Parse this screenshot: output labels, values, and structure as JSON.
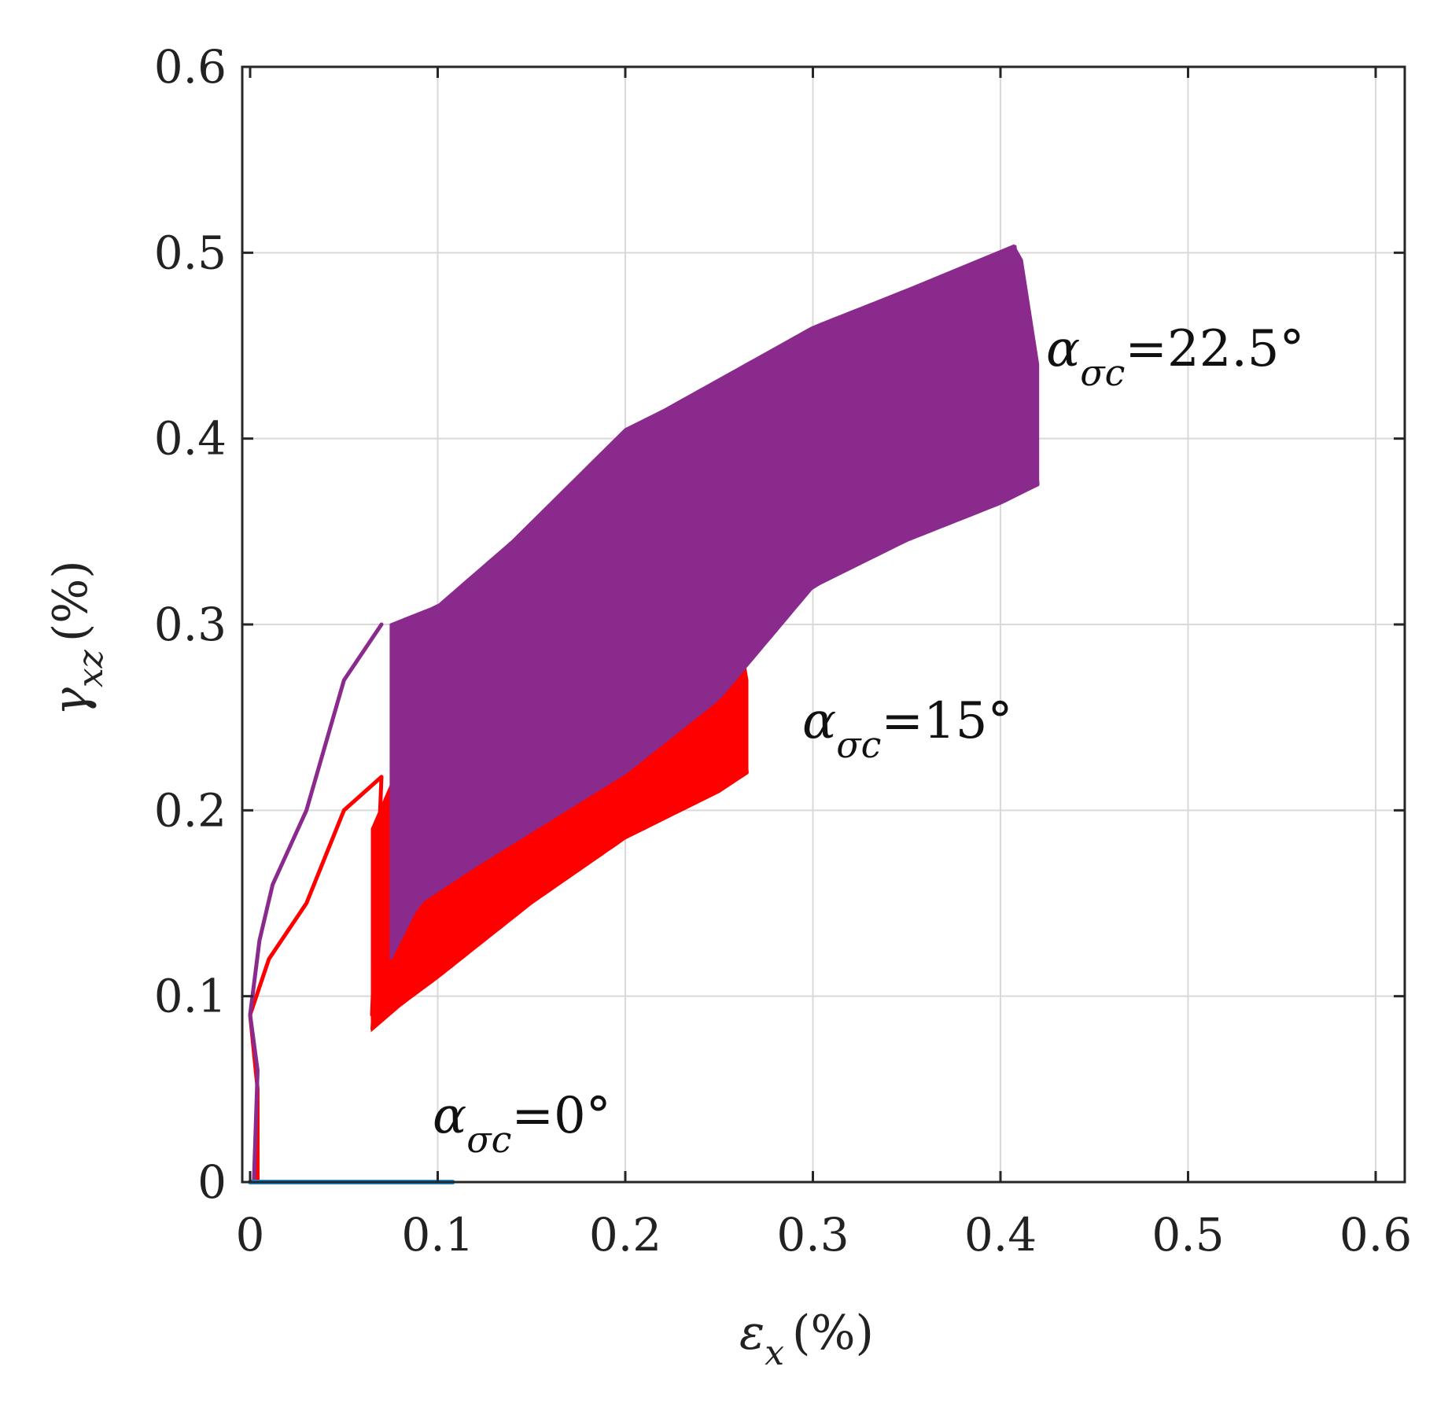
{
  "chart_data": {
    "type": "line",
    "xlabel": {
      "main": "ε",
      "sub": "x",
      "unit": "(%)"
    },
    "ylabel": {
      "main": "γ",
      "sub": "xz",
      "unit": "(%)"
    },
    "xlim": [
      0,
      0.6
    ],
    "ylim": [
      0,
      0.6
    ],
    "xticks": [
      0,
      0.1,
      0.2,
      0.3,
      0.4,
      0.5,
      0.6
    ],
    "yticks": [
      0,
      0.1,
      0.2,
      0.3,
      0.4,
      0.5,
      0.6
    ],
    "xtick_labels": [
      "0",
      "0.1",
      "0.2",
      "0.3",
      "0.4",
      "0.5",
      "0.6"
    ],
    "ytick_labels": [
      "0",
      "0.1",
      "0.2",
      "0.3",
      "0.4",
      "0.5",
      "0.6"
    ],
    "grid": true,
    "series": [
      {
        "label_main": "α",
        "label_sub": "σc",
        "label_value": "=22.5°",
        "color": "#8b2a8d",
        "initial": [
          [
            0.002,
            0.0
          ],
          [
            0.004,
            0.06
          ],
          [
            0.0,
            0.09
          ],
          [
            0.005,
            0.13
          ],
          [
            0.012,
            0.16
          ],
          [
            0.03,
            0.2
          ],
          [
            0.05,
            0.27
          ],
          [
            0.07,
            0.3
          ]
        ],
        "lower_envelope": [
          [
            0.075,
            0.12
          ],
          [
            0.09,
            0.15
          ],
          [
            0.12,
            0.17
          ],
          [
            0.2,
            0.22
          ],
          [
            0.25,
            0.26
          ],
          [
            0.3,
            0.32
          ],
          [
            0.35,
            0.345
          ],
          [
            0.4,
            0.365
          ],
          [
            0.42,
            0.375
          ]
        ],
        "upper_envelope": [
          [
            0.075,
            0.3
          ],
          [
            0.1,
            0.31
          ],
          [
            0.14,
            0.345
          ],
          [
            0.2,
            0.405
          ],
          [
            0.22,
            0.415
          ],
          [
            0.3,
            0.46
          ],
          [
            0.35,
            0.48
          ],
          [
            0.41,
            0.505
          ],
          [
            0.42,
            0.44
          ]
        ]
      },
      {
        "label_main": "α",
        "label_sub": "σc",
        "label_value": "=15°",
        "color": "#ff0000",
        "initial": [
          [
            0.004,
            0.0
          ],
          [
            0.004,
            0.05
          ],
          [
            0.0,
            0.09
          ],
          [
            0.01,
            0.12
          ],
          [
            0.03,
            0.15
          ],
          [
            0.05,
            0.2
          ],
          [
            0.07,
            0.218
          ],
          [
            0.065,
            0.09
          ]
        ],
        "lower_envelope": [
          [
            0.065,
            0.082
          ],
          [
            0.08,
            0.095
          ],
          [
            0.1,
            0.11
          ],
          [
            0.15,
            0.15
          ],
          [
            0.2,
            0.185
          ],
          [
            0.25,
            0.21
          ],
          [
            0.265,
            0.22
          ]
        ],
        "upper_envelope": [
          [
            0.065,
            0.19
          ],
          [
            0.08,
            0.225
          ],
          [
            0.12,
            0.235
          ],
          [
            0.18,
            0.26
          ],
          [
            0.22,
            0.28
          ],
          [
            0.26,
            0.3
          ],
          [
            0.265,
            0.27
          ]
        ]
      },
      {
        "label_main": "α",
        "label_sub": "σc",
        "label_value": "=0°",
        "color": "#1f8fd6",
        "initial": [
          [
            0.0,
            0.0
          ],
          [
            0.108,
            0.0
          ]
        ]
      }
    ]
  }
}
